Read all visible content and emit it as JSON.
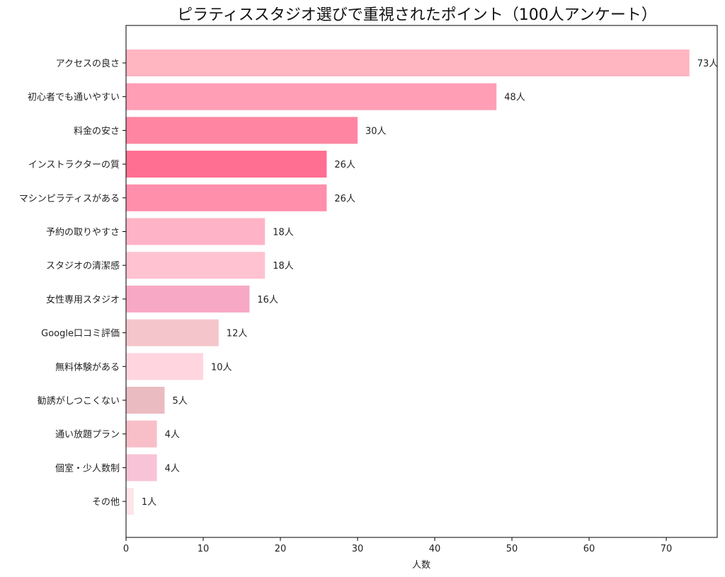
{
  "chart_data": {
    "type": "bar",
    "orientation": "horizontal",
    "title": "ピラティススタジオ選びで重視されたポイント（100人アンケート）",
    "xlabel": "人数",
    "ylabel": "",
    "xlim": [
      0,
      76.6
    ],
    "xticks": [
      0,
      10,
      20,
      30,
      40,
      50,
      60,
      70
    ],
    "grid": false,
    "legend": "none",
    "value_suffix": "人",
    "categories": [
      "アクセスの良さ",
      "初心者でも通いやすい",
      "料金の安さ",
      "インストラクターの質",
      "マシンピラティスがある",
      "予約の取りやすさ",
      "スタジオの清潔感",
      "女性専用スタジオ",
      "Google口コミ評価",
      "無料体験がある",
      "勧誘がしつこくない",
      "通い放題プラン",
      "個室・少人数制",
      "その他"
    ],
    "values": [
      73,
      48,
      30,
      26,
      26,
      18,
      18,
      16,
      12,
      10,
      5,
      4,
      4,
      1
    ],
    "data_labels": [
      "73人",
      "48人",
      "30人",
      "26人",
      "26人",
      "18人",
      "18人",
      "16人",
      "12人",
      "10人",
      "5人",
      "4人",
      "4人",
      "1人"
    ],
    "colors": [
      "#ffb6c1",
      "#ff9eb5",
      "#ff85a2",
      "#ff6f91",
      "#ff8fab",
      "#ffb3c6",
      "#ffc2d1",
      "#f7a8c4",
      "#f4c6cc",
      "#ffd6e0",
      "#ebbbc2",
      "#f9bfc8",
      "#f8c3d6",
      "#ffe4ea"
    ]
  }
}
